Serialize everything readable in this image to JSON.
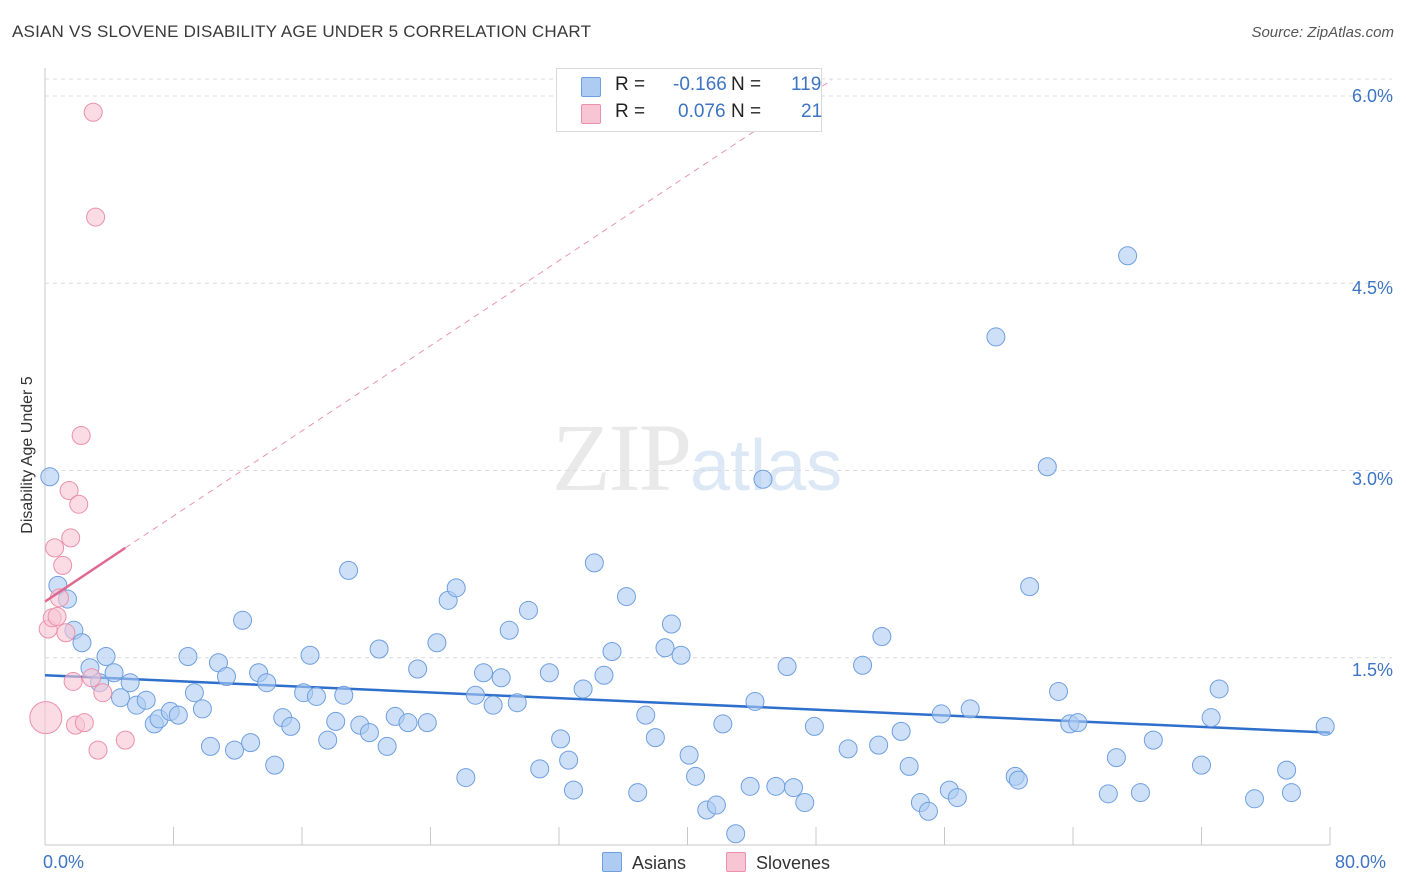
{
  "title": "ASIAN VS SLOVENE DISABILITY AGE UNDER 5 CORRELATION CHART",
  "source": "Source: ZipAtlas.com",
  "watermark": {
    "zip": "ZIP",
    "atlas": "atlas"
  },
  "legend": {
    "r_label": "R =",
    "n_label": "N =",
    "rows": [
      {
        "name": "Asians",
        "r": "-0.166",
        "n": "119",
        "color": "#aecbf2",
        "stroke": "#6f9fe0"
      },
      {
        "name": "Slovenes",
        "r": "0.076",
        "n": "21",
        "color": "#f8c5d4",
        "stroke": "#ea90ac"
      }
    ]
  },
  "colors": {
    "accent": "#3d74c4",
    "asian_line": "#2f6fcc",
    "slovene_line": "#e0698f",
    "grid": "#dcdcdc"
  },
  "chart_data": {
    "type": "scatter",
    "title": "ASIAN VS SLOVENE DISABILITY AGE UNDER 5 CORRELATION CHART",
    "xlabel": "",
    "ylabel": "Disability Age Under 5",
    "xlim": [
      0,
      80
    ],
    "ylim": [
      0,
      6.0
    ],
    "x_tick_labels": [
      "0.0%",
      "80.0%"
    ],
    "y_ticks": [
      1.5,
      3.0,
      4.5,
      6.0
    ],
    "y_tick_labels": [
      "1.5%",
      "3.0%",
      "4.5%",
      "6.0%"
    ],
    "grid": "horizontal dashed",
    "legend_position": "top-center",
    "series": [
      {
        "name": "Asians",
        "points": [
          [
            0.3,
            2.95
          ],
          [
            0.8,
            2.08
          ],
          [
            1.4,
            1.97
          ],
          [
            1.8,
            1.72
          ],
          [
            2.3,
            1.62
          ],
          [
            2.8,
            1.42
          ],
          [
            3.4,
            1.3
          ],
          [
            3.8,
            1.51
          ],
          [
            4.3,
            1.38
          ],
          [
            4.7,
            1.18
          ],
          [
            5.3,
            1.3
          ],
          [
            5.7,
            1.12
          ],
          [
            6.3,
            1.16
          ],
          [
            6.8,
            0.97
          ],
          [
            7.1,
            1.01
          ],
          [
            7.8,
            1.07
          ],
          [
            8.3,
            1.04
          ],
          [
            8.9,
            1.51
          ],
          [
            9.3,
            1.22
          ],
          [
            9.8,
            1.09
          ],
          [
            10.3,
            0.79
          ],
          [
            10.8,
            1.46
          ],
          [
            11.3,
            1.35
          ],
          [
            11.8,
            0.76
          ],
          [
            12.3,
            1.8
          ],
          [
            12.8,
            0.82
          ],
          [
            13.3,
            1.38
          ],
          [
            13.8,
            1.3
          ],
          [
            14.3,
            0.64
          ],
          [
            14.8,
            1.02
          ],
          [
            15.3,
            0.95
          ],
          [
            16.1,
            1.22
          ],
          [
            16.5,
            1.52
          ],
          [
            16.9,
            1.19
          ],
          [
            17.6,
            0.84
          ],
          [
            18.1,
            0.99
          ],
          [
            18.6,
            1.2
          ],
          [
            18.9,
            2.2
          ],
          [
            19.6,
            0.96
          ],
          [
            20.2,
            0.9
          ],
          [
            20.8,
            1.57
          ],
          [
            21.3,
            0.79
          ],
          [
            21.8,
            1.03
          ],
          [
            22.6,
            0.98
          ],
          [
            23.2,
            1.41
          ],
          [
            23.8,
            0.98
          ],
          [
            24.4,
            1.62
          ],
          [
            25.1,
            1.96
          ],
          [
            25.6,
            2.06
          ],
          [
            26.2,
            0.54
          ],
          [
            26.8,
            1.2
          ],
          [
            27.3,
            1.38
          ],
          [
            27.9,
            1.12
          ],
          [
            28.4,
            1.34
          ],
          [
            28.9,
            1.72
          ],
          [
            29.4,
            1.14
          ],
          [
            30.1,
            1.88
          ],
          [
            30.8,
            0.61
          ],
          [
            31.4,
            1.38
          ],
          [
            32.1,
            0.85
          ],
          [
            32.6,
            0.68
          ],
          [
            32.9,
            0.44
          ],
          [
            33.5,
            1.25
          ],
          [
            34.2,
            2.26
          ],
          [
            34.8,
            1.36
          ],
          [
            35.3,
            1.55
          ],
          [
            36.2,
            1.99
          ],
          [
            36.9,
            0.42
          ],
          [
            37.4,
            1.04
          ],
          [
            38.0,
            0.86
          ],
          [
            38.6,
            1.58
          ],
          [
            39.0,
            1.77
          ],
          [
            39.6,
            1.52
          ],
          [
            40.1,
            0.72
          ],
          [
            40.5,
            0.55
          ],
          [
            41.2,
            0.28
          ],
          [
            41.8,
            0.32
          ],
          [
            42.2,
            0.97
          ],
          [
            43.0,
            0.09
          ],
          [
            43.9,
            0.47
          ],
          [
            44.2,
            1.15
          ],
          [
            44.7,
            2.93
          ],
          [
            45.5,
            0.47
          ],
          [
            46.2,
            1.43
          ],
          [
            46.6,
            0.46
          ],
          [
            47.3,
            0.34
          ],
          [
            47.9,
            0.95
          ],
          [
            50.0,
            0.77
          ],
          [
            50.9,
            1.44
          ],
          [
            51.9,
            0.8
          ],
          [
            52.1,
            1.67
          ],
          [
            53.3,
            0.91
          ],
          [
            53.8,
            0.63
          ],
          [
            54.5,
            0.34
          ],
          [
            55.0,
            0.27
          ],
          [
            55.8,
            1.05
          ],
          [
            56.3,
            0.44
          ],
          [
            56.8,
            0.38
          ],
          [
            57.6,
            1.09
          ],
          [
            59.2,
            4.07
          ],
          [
            60.4,
            0.55
          ],
          [
            60.6,
            0.52
          ],
          [
            61.3,
            2.07
          ],
          [
            62.4,
            3.03
          ],
          [
            63.1,
            1.23
          ],
          [
            63.8,
            0.97
          ],
          [
            64.3,
            0.98
          ],
          [
            66.2,
            0.41
          ],
          [
            66.7,
            0.7
          ],
          [
            67.4,
            4.72
          ],
          [
            68.2,
            0.42
          ],
          [
            69.0,
            0.84
          ],
          [
            72.0,
            0.64
          ],
          [
            72.6,
            1.02
          ],
          [
            73.1,
            1.25
          ],
          [
            75.3,
            0.37
          ],
          [
            77.3,
            0.6
          ],
          [
            77.6,
            0.42
          ],
          [
            79.7,
            0.95
          ]
        ]
      },
      {
        "name": "Slovenes",
        "points": [
          [
            0.05,
            1.02
          ],
          [
            0.2,
            1.73
          ],
          [
            0.45,
            1.82
          ],
          [
            0.6,
            2.38
          ],
          [
            0.75,
            1.83
          ],
          [
            0.9,
            1.98
          ],
          [
            1.1,
            2.24
          ],
          [
            1.3,
            1.7
          ],
          [
            1.5,
            2.84
          ],
          [
            1.6,
            2.46
          ],
          [
            1.75,
            1.31
          ],
          [
            1.9,
            0.96
          ],
          [
            2.1,
            2.73
          ],
          [
            2.25,
            3.28
          ],
          [
            2.45,
            0.98
          ],
          [
            2.9,
            1.34
          ],
          [
            3.0,
            5.87
          ],
          [
            3.15,
            5.03
          ],
          [
            3.3,
            0.76
          ],
          [
            3.6,
            1.22
          ],
          [
            5.0,
            0.84
          ]
        ]
      }
    ],
    "trend_lines": [
      {
        "name": "Asians",
        "x": [
          0,
          80
        ],
        "y": [
          1.36,
          0.9
        ]
      },
      {
        "name": "Slovenes",
        "solid_x": [
          0,
          5.0
        ],
        "solid_y": [
          1.95,
          2.38
        ],
        "dashed_x": [
          5.0,
          49.0
        ],
        "dashed_y": [
          2.38,
          6.13
        ]
      }
    ]
  }
}
